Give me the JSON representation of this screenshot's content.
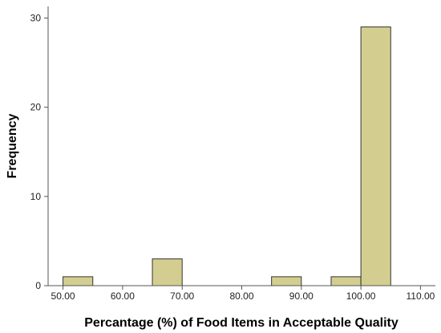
{
  "chart_data": {
    "type": "bar",
    "title": "",
    "xlabel": "Percantage (%) of Food Items in Acceptable Quality",
    "ylabel": "Frequency",
    "x_ticks": [
      "50.00",
      "60.00",
      "70.00",
      "80.00",
      "90.00",
      "100.00",
      "110.00"
    ],
    "x_tick_values": [
      50,
      60,
      70,
      80,
      90,
      100,
      110
    ],
    "y_ticks": [
      "0",
      "10",
      "20",
      "30"
    ],
    "y_tick_values": [
      0,
      10,
      20,
      30
    ],
    "xlim": [
      47.5,
      112.5
    ],
    "ylim": [
      0,
      31.3
    ],
    "bin_width": 5,
    "bins": [
      {
        "x_start": 50,
        "x_end": 55,
        "count": 1
      },
      {
        "x_start": 65,
        "x_end": 70,
        "count": 3
      },
      {
        "x_start": 85,
        "x_end": 90,
        "count": 1
      },
      {
        "x_start": 95,
        "x_end": 100,
        "count": 1
      },
      {
        "x_start": 100,
        "x_end": 105,
        "count": 29
      }
    ],
    "bar_color": "#d3ce8f",
    "bar_stroke": "#333333",
    "grid": false,
    "legend": "none"
  }
}
